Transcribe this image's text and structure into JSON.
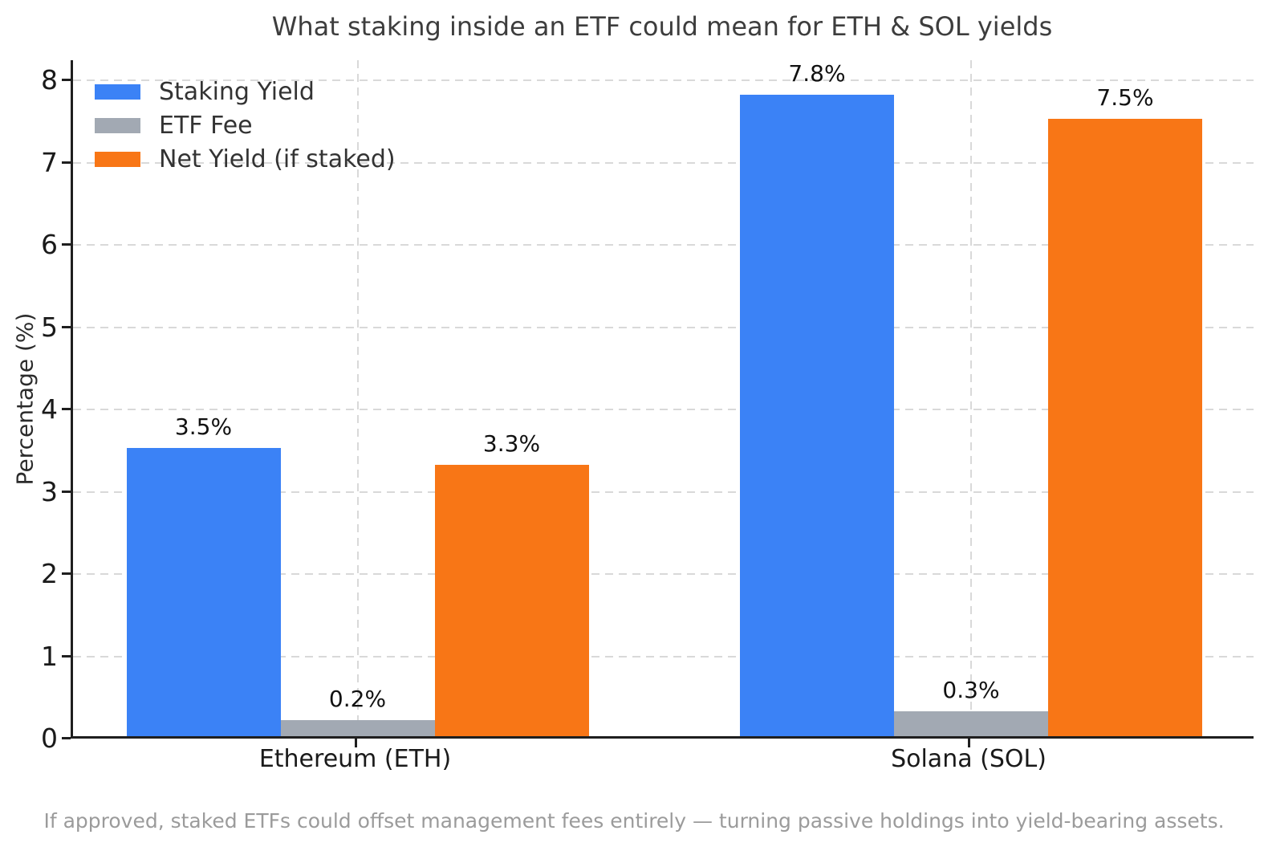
{
  "chart_data": {
    "type": "bar",
    "title": "What staking inside an ETF could mean for ETH & SOL yields",
    "ylabel": "Percentage (%)",
    "categories": [
      "Ethereum (ETH)",
      "Solana (SOL)"
    ],
    "series": [
      {
        "name": "Staking Yield",
        "color": "#3b82f6",
        "values": [
          3.5,
          7.8
        ],
        "labels": [
          "3.5%",
          "7.8%"
        ]
      },
      {
        "name": "ETF Fee",
        "color": "#a2a9b3",
        "values": [
          0.2,
          0.3
        ],
        "labels": [
          "0.2%",
          "0.3%"
        ]
      },
      {
        "name": "Net Yield (if staked)",
        "color": "#f87616",
        "values": [
          3.3,
          7.5
        ],
        "labels": [
          "3.3%",
          "7.5%"
        ]
      }
    ],
    "yticks": [
      0,
      1,
      2,
      3,
      4,
      5,
      6,
      7,
      8
    ],
    "ylim": [
      0,
      8.24
    ],
    "grid": "dashed",
    "legend_position": "upper-left",
    "caption": "If approved, staked ETFs could offset management fees entirely — turning passive holdings into yield-bearing assets.",
    "colors": {
      "staking_yield": "#3b82f6",
      "etf_fee": "#a2a9b3",
      "net_yield": "#f87616",
      "axis": "#1f1f1f",
      "grid": "#d9d9d9",
      "title_text": "#3d3d3d",
      "caption_text": "#9b9b9b"
    }
  }
}
